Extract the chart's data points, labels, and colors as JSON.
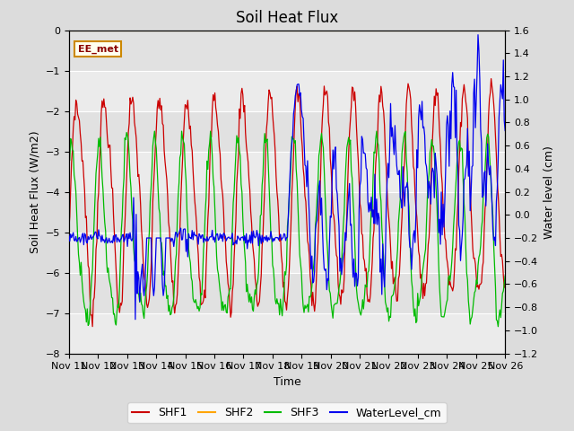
{
  "title": "Soil Heat Flux",
  "xlabel": "Time",
  "ylabel_left": "Soil Heat Flux (W/m2)",
  "ylabel_right": "Water level (cm)",
  "ylim_left": [
    -8.0,
    0.0
  ],
  "ylim_right": [
    -1.2,
    1.6
  ],
  "yticks_left": [
    0.0,
    -1.0,
    -2.0,
    -3.0,
    -4.0,
    -5.0,
    -6.0,
    -7.0,
    -8.0
  ],
  "yticks_right": [
    1.6,
    1.4,
    1.2,
    1.0,
    0.8,
    0.6,
    0.4,
    0.2,
    0.0,
    -0.2,
    -0.4,
    -0.6,
    -0.8,
    -1.0,
    -1.2
  ],
  "xtick_labels": [
    "Nov 11",
    "Nov 12",
    "Nov 13",
    "Nov 14",
    "Nov 15",
    "Nov 16",
    "Nov 17",
    "Nov 18",
    "Nov 19",
    "Nov 20",
    "Nov 21",
    "Nov 22",
    "Nov 23",
    "Nov 24",
    "Nov 25",
    "Nov 26"
  ],
  "annotation_text": "EE_met",
  "shf2_color": "#FFA500",
  "shf1_color": "#CC0000",
  "shf3_color": "#00BB00",
  "water_color": "#0000EE",
  "background_color": "#DCDCDC",
  "plot_bg_color": "#EBEBEB",
  "grid_color": "#FFFFFF",
  "title_fontsize": 12,
  "label_fontsize": 9,
  "tick_fontsize": 8,
  "legend_fontsize": 9
}
